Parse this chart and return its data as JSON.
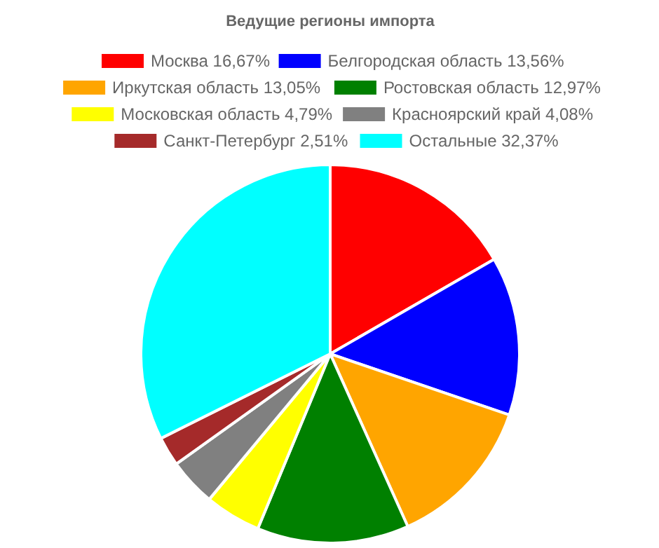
{
  "chart_data": {
    "type": "pie",
    "title": "Ведущие регионы импорта",
    "categories": [
      "Москва",
      "Белгородская область",
      "Иркутская область",
      "Ростовская область",
      "Московская область",
      "Красноярский край",
      "Санкт-Петербург",
      "Остальные"
    ],
    "values": [
      16.67,
      13.56,
      13.05,
      12.97,
      4.79,
      4.08,
      2.51,
      32.37
    ],
    "value_labels": [
      "16,67%",
      "13,56%",
      "13,05%",
      "12,97%",
      "4,79%",
      "4,08%",
      "2,51%",
      "32,37%"
    ],
    "colors": [
      "#ff0000",
      "#0000ff",
      "#ffa500",
      "#008000",
      "#ffff00",
      "#808080",
      "#a52a2a",
      "#00ffff"
    ],
    "legend": "top"
  }
}
